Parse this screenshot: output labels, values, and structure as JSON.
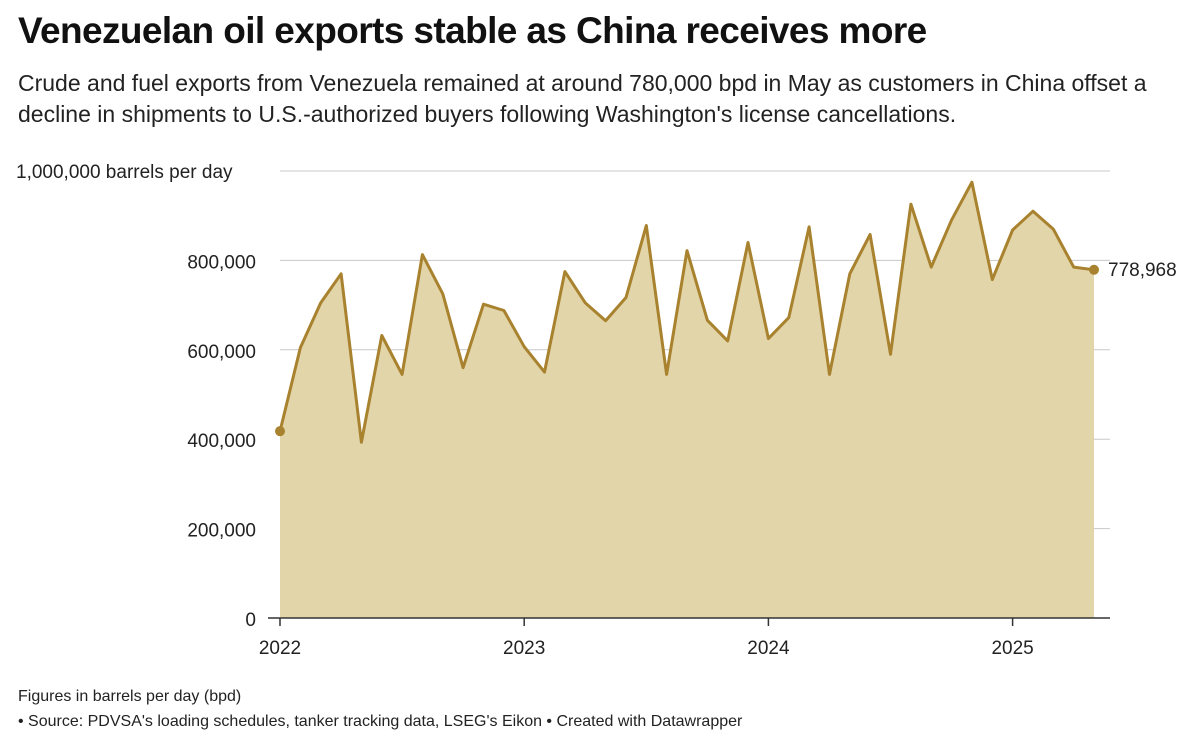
{
  "title": "Venezuelan oil exports stable as China receives more",
  "subtitle": "Crude and fuel exports from Venezuela remained at around 780,000 bpd in May as customers in China offset a decline in shipments to U.S.-authorized buyers following Washington's license cancellations.",
  "footnote": "Figures in barrels per day (bpd)",
  "source": "• Source: PDVSA's loading schedules, tanker tracking data, LSEG's Eikon • Created with Datawrapper",
  "colors": {
    "line": "#a8822e",
    "area": "#e3d5aa",
    "grid": "#c8c8c8",
    "axis": "#333333"
  },
  "chart_data": {
    "type": "area",
    "ylabel": "1,000,000 barrels per day",
    "ylim": [
      0,
      1000000
    ],
    "y_ticks": [
      {
        "value": 0,
        "label": "0"
      },
      {
        "value": 200000,
        "label": "200,000"
      },
      {
        "value": 400000,
        "label": "400,000"
      },
      {
        "value": 600000,
        "label": "600,000"
      },
      {
        "value": 800000,
        "label": "800,000"
      },
      {
        "value": 1000000,
        "label": "1,000,000 barrels per day"
      }
    ],
    "x_ticks": [
      {
        "value": "2022-01",
        "label": "2022"
      },
      {
        "value": "2023-01",
        "label": "2023"
      },
      {
        "value": "2024-01",
        "label": "2024"
      },
      {
        "value": "2025-01",
        "label": "2025"
      }
    ],
    "grid": true,
    "end_label": "778,968",
    "x": [
      "2022-01",
      "2022-02",
      "2022-03",
      "2022-04",
      "2022-05",
      "2022-06",
      "2022-07",
      "2022-08",
      "2022-09",
      "2022-10",
      "2022-11",
      "2022-12",
      "2023-01",
      "2023-02",
      "2023-03",
      "2023-04",
      "2023-05",
      "2023-06",
      "2023-07",
      "2023-08",
      "2023-09",
      "2023-10",
      "2023-11",
      "2023-12",
      "2024-01",
      "2024-02",
      "2024-03",
      "2024-04",
      "2024-05",
      "2024-06",
      "2024-07",
      "2024-08",
      "2024-09",
      "2024-10",
      "2024-11",
      "2024-12",
      "2025-01",
      "2025-02",
      "2025-03",
      "2025-04",
      "2025-05"
    ],
    "values": [
      418000,
      605000,
      705000,
      770000,
      393000,
      632000,
      545000,
      813000,
      725000,
      560000,
      702000,
      688000,
      607000,
      550000,
      775000,
      705000,
      665000,
      717000,
      878000,
      545000,
      822000,
      666000,
      620000,
      840000,
      625000,
      672000,
      875000,
      545000,
      770000,
      858000,
      590000,
      926000,
      785000,
      890000,
      975000,
      757000,
      868000,
      910000,
      870000,
      785000,
      778968
    ]
  }
}
